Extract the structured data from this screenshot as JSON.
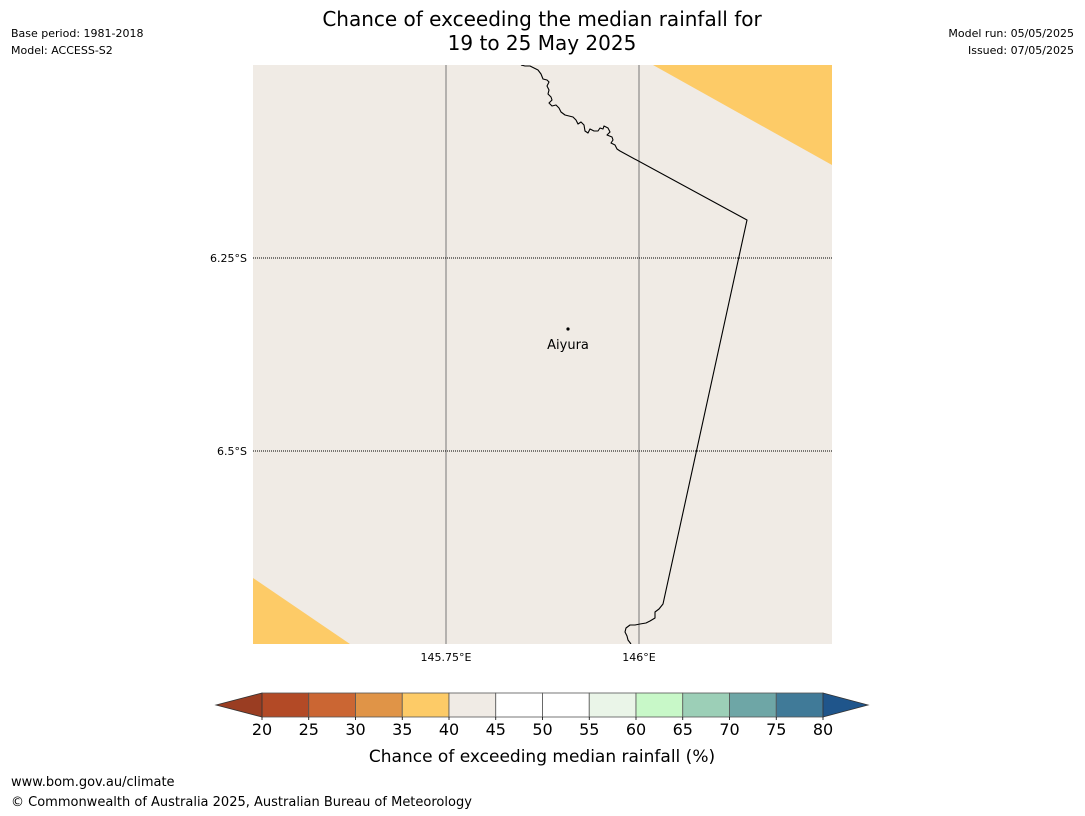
{
  "header": {
    "title_line1": "Chance of exceeding the median rainfall for",
    "title_line2": "19 to 25 May 2025",
    "base_period": "Base period: 1981-2018",
    "model": "Model: ACCESS-S2",
    "model_run": "Model run: 05/05/2025",
    "issued": "Issued: 07/05/2025"
  },
  "map": {
    "background_category": "40-45",
    "lat_labels": [
      "6.25°S",
      "6.5°S"
    ],
    "lon_labels": [
      "145.75°E",
      "146°E"
    ],
    "place": {
      "name": "Aiyura"
    },
    "colors": {
      "land_40_45": "#f0ebe5",
      "land_35_40": "#fdcb67",
      "border": "#000000",
      "gridline": "#777777"
    }
  },
  "colorbar": {
    "title": "Chance of exceeding median rainfall (%)",
    "ticks": [
      "20",
      "25",
      "30",
      "35",
      "40",
      "45",
      "50",
      "55",
      "60",
      "65",
      "70",
      "75",
      "80"
    ],
    "colors": [
      "#b34a26",
      "#cb6633",
      "#e09447",
      "#fdcb67",
      "#f0ebe5",
      "#ffffff",
      "#ffffff",
      "#eaf5e8",
      "#c8f8c8",
      "#9ccfb7",
      "#6ea6a6",
      "#407a98"
    ],
    "under_color": "#9a3d22",
    "over_color": "#1f558b"
  },
  "footer": {
    "url": "www.bom.gov.au/climate",
    "copyright": "© Commonwealth of Australia 2025, Australian Bureau of Meteorology"
  }
}
